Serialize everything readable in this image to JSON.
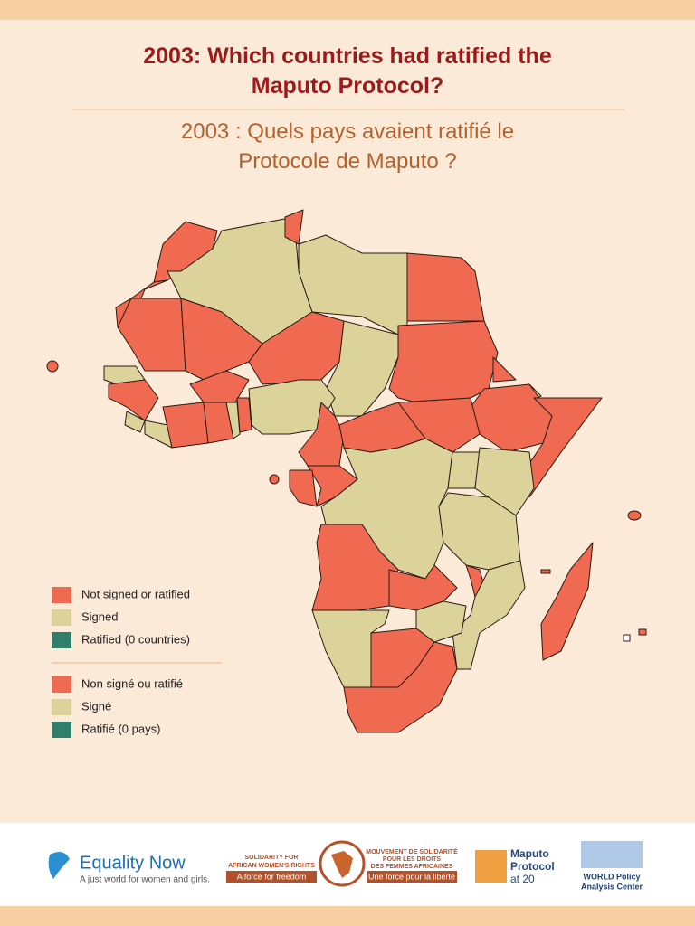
{
  "header": {
    "title_line1": "2003: Which countries had ratified the",
    "title_line2": "Maputo Protocol?",
    "subtitle_line1": "2003 : Quels pays avaient ratifié le",
    "subtitle_line2": "Protocole de Maputo ?"
  },
  "legend": {
    "items": [
      {
        "label": "Not signed or ratified",
        "color": "#ef6a50"
      },
      {
        "label": "Signed",
        "color": "#dbd399"
      },
      {
        "label": "Ratified (0 countries)",
        "color": "#2f7f6a"
      }
    ],
    "items_fr": [
      "Non signé ou ratifié",
      "Signé",
      "Ratifié (0 pays)"
    ]
  },
  "footer": {
    "equality_now": "Equality Now",
    "equality_now_tagline": "A just world for women and girls.",
    "soawr_en_1": "SOLIDARITY FOR",
    "soawr_en_2": "AFRICAN WOMEN'S RIGHTS",
    "soawr_en_tag": "A force for freedom",
    "soawr_fr_1": "MOUVEMENT DE SOLIDARITÉ",
    "soawr_fr_2": "POUR LES DROITS",
    "soawr_fr_3": "DES FEMMES AFRICAINES",
    "soawr_fr_tag": "Une force pour la liberté",
    "maputo_1": "Maputo",
    "maputo_2": "Protocol",
    "maputo_3": "at 20",
    "wpac_1": "WORLD Policy",
    "wpac_2": "Analysis Center"
  }
}
